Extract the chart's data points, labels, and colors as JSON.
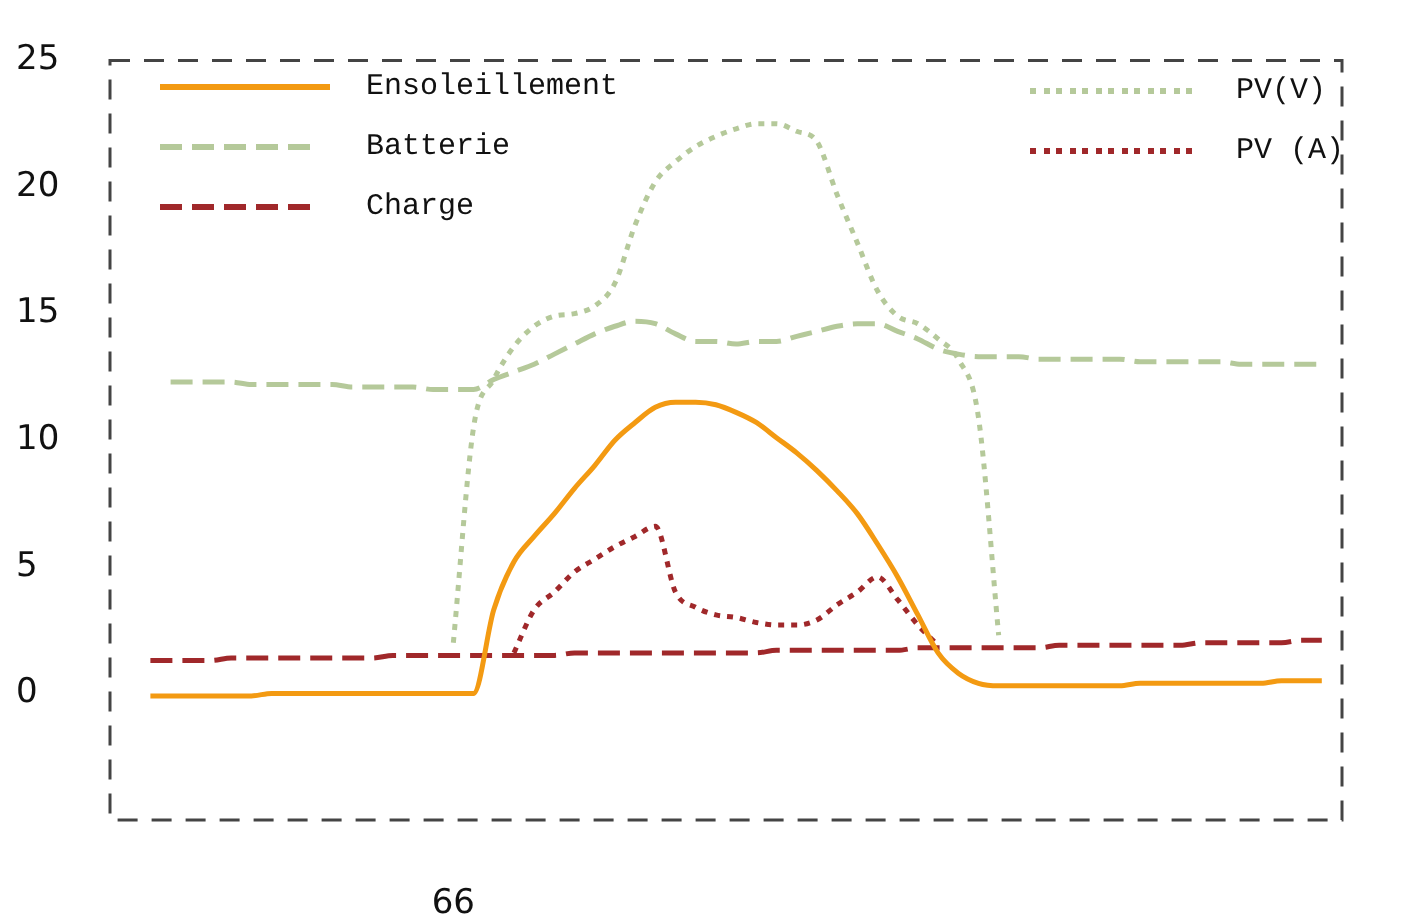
{
  "chart_data": {
    "type": "line",
    "categories": [
      null,
      null,
      null,
      null,
      null,
      null,
      null,
      null,
      null,
      null,
      null,
      null,
      null,
      null,
      null,
      null,
      null,
      "66",
      null,
      null,
      null,
      null,
      null,
      null,
      null,
      null,
      null,
      null,
      null,
      null,
      null,
      null,
      null,
      null,
      null,
      null,
      null,
      null,
      null,
      null,
      null,
      null,
      null,
      null,
      null,
      null,
      null,
      null,
      null,
      null,
      null,
      null,
      null,
      null,
      null,
      null,
      null,
      null,
      null,
      null,
      null,
      null
    ],
    "ylim": [
      -5,
      25
    ],
    "yticks": [
      0,
      5,
      10,
      15,
      20,
      25
    ],
    "grid": false,
    "legend": "top",
    "marker": "none",
    "series": [
      {
        "name": "Ensoleillement",
        "color": "#f39a12",
        "line_style": "solid",
        "values": [
          null,
          null,
          -0.1,
          -0.1,
          -0.1,
          -0.1,
          -0.1,
          -0.1,
          0,
          0,
          0,
          0,
          0,
          0,
          0,
          0,
          0,
          0,
          0,
          3.3,
          5.2,
          6.2,
          7.1,
          8.1,
          9.0,
          10.0,
          10.7,
          11.3,
          11.5,
          11.5,
          11.4,
          11.1,
          10.7,
          10.1,
          9.5,
          8.8,
          8.0,
          7.1,
          5.9,
          4.6,
          3.1,
          1.6,
          0.8,
          0.4,
          0.3,
          0.3,
          0.3,
          0.3,
          0.3,
          0.3,
          0.3,
          0.4,
          0.4,
          0.4,
          0.4,
          0.4,
          0.4,
          0.4,
          0.5,
          0.5,
          0.5,
          null
        ]
      },
      {
        "name": "Batterie",
        "color": "#b5c99a",
        "line_style": "dashed",
        "values": [
          null,
          null,
          null,
          12.3,
          12.3,
          12.3,
          12.3,
          12.2,
          12.2,
          12.2,
          12.2,
          12.2,
          12.1,
          12.1,
          12.1,
          12.1,
          12.0,
          12.0,
          12.0,
          12.4,
          12.7,
          13.0,
          13.4,
          13.8,
          14.2,
          14.5,
          14.7,
          14.6,
          14.2,
          13.9,
          13.9,
          13.8,
          13.9,
          13.9,
          14.1,
          14.3,
          14.5,
          14.6,
          14.6,
          14.3,
          14.0,
          13.6,
          13.4,
          13.3,
          13.3,
          13.3,
          13.2,
          13.2,
          13.2,
          13.2,
          13.2,
          13.1,
          13.1,
          13.1,
          13.1,
          13.1,
          13.0,
          13.0,
          13.0,
          13.0,
          13.0,
          null
        ]
      },
      {
        "name": "Charge",
        "color": "#a0282a",
        "line_style": "dashed",
        "values": [
          null,
          null,
          1.3,
          1.3,
          1.3,
          1.3,
          1.4,
          1.4,
          1.4,
          1.4,
          1.4,
          1.4,
          1.4,
          1.4,
          1.5,
          1.5,
          1.5,
          1.5,
          1.5,
          1.5,
          1.5,
          1.5,
          1.5,
          1.6,
          1.6,
          1.6,
          1.6,
          1.6,
          1.6,
          1.6,
          1.6,
          1.6,
          1.6,
          1.7,
          1.7,
          1.7,
          1.7,
          1.7,
          1.7,
          1.7,
          1.8,
          1.8,
          1.8,
          1.8,
          1.8,
          1.8,
          1.8,
          1.9,
          1.9,
          1.9,
          1.9,
          1.9,
          1.9,
          1.9,
          2.0,
          2.0,
          2.0,
          2.0,
          2.0,
          2.1,
          2.1,
          null
        ]
      },
      {
        "name": "PV(V)",
        "color": "#b5c99a",
        "line_style": "dotted",
        "values": [
          null,
          null,
          null,
          null,
          null,
          null,
          null,
          null,
          null,
          null,
          null,
          null,
          null,
          null,
          null,
          null,
          null,
          2.0,
          10.5,
          12.4,
          13.7,
          14.5,
          14.9,
          15.0,
          15.3,
          16.2,
          18.5,
          20.2,
          21.0,
          21.6,
          22.0,
          22.3,
          22.5,
          22.5,
          22.2,
          21.8,
          19.7,
          17.8,
          15.9,
          14.9,
          14.6,
          14.0,
          13.2,
          10.9,
          2.3,
          null,
          null,
          null,
          null,
          null,
          null,
          null,
          null,
          null,
          null,
          null,
          null,
          null,
          null,
          null,
          null,
          null
        ]
      },
      {
        "name": "PV (A)",
        "color": "#a0282a",
        "line_style": "dotted",
        "values": [
          null,
          null,
          null,
          null,
          null,
          null,
          null,
          null,
          null,
          null,
          null,
          null,
          null,
          null,
          null,
          null,
          null,
          null,
          null,
          null,
          1.6,
          3.3,
          4.0,
          4.8,
          5.3,
          5.8,
          6.2,
          6.6,
          4.0,
          3.4,
          3.1,
          3.0,
          2.8,
          2.7,
          2.7,
          2.9,
          3.5,
          4.0,
          4.6,
          3.7,
          2.7,
          1.9,
          null,
          null,
          null,
          null,
          null,
          null,
          null,
          null,
          null,
          null,
          null,
          null,
          null,
          null,
          null,
          null,
          null,
          null,
          null,
          null
        ]
      }
    ]
  }
}
